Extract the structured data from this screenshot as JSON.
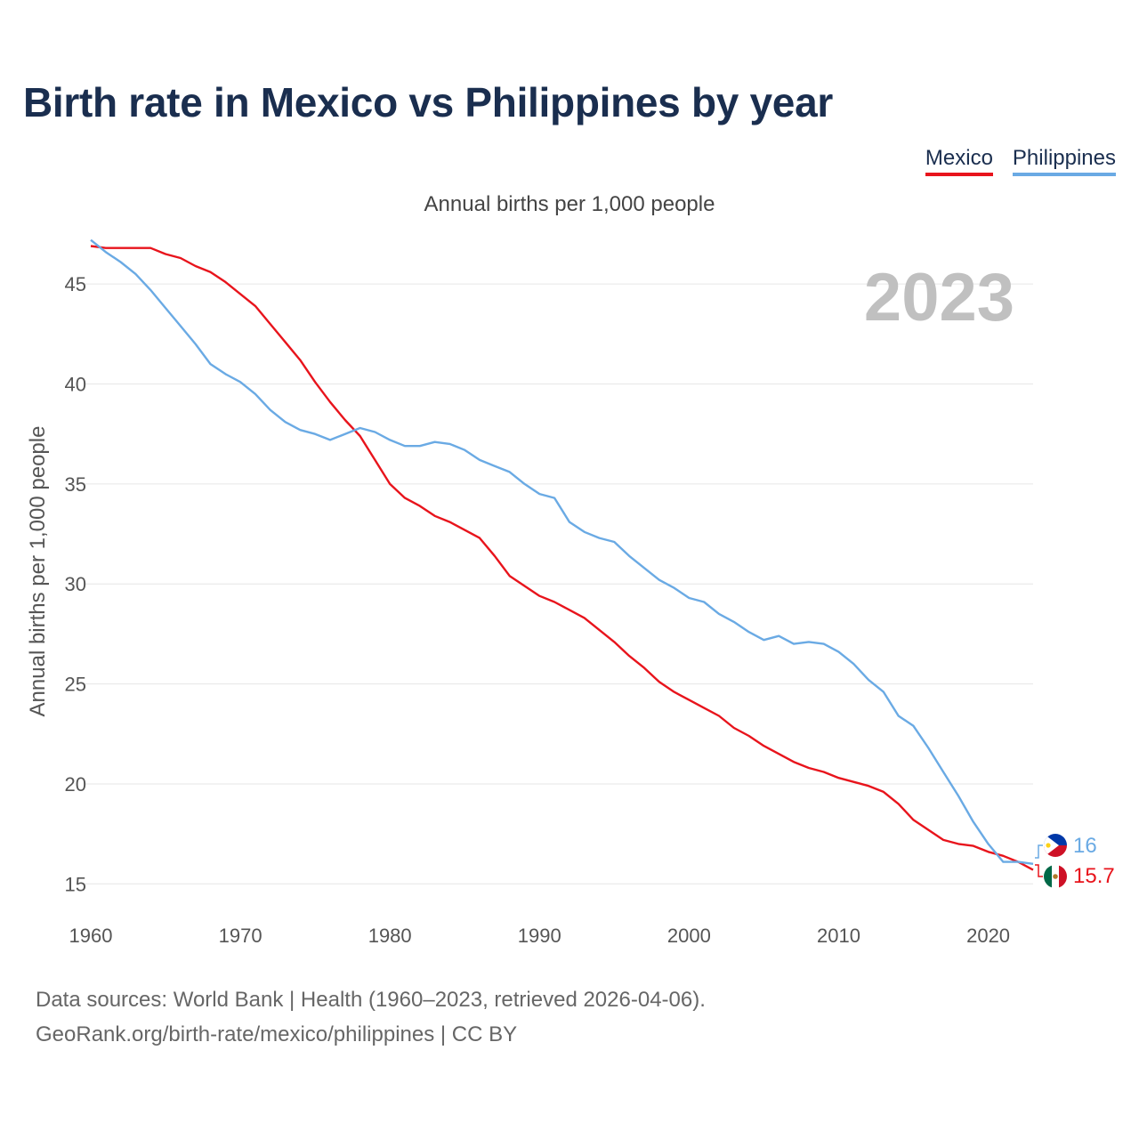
{
  "title": "Birth rate in Mexico vs Philippines by year",
  "subtitle": "Annual births per 1,000 people",
  "year_label": "2023",
  "legend": [
    {
      "name": "Mexico",
      "color": "#e8141c"
    },
    {
      "name": "Philippines",
      "color": "#6aaae4"
    }
  ],
  "end_labels": {
    "mexico": "15.7",
    "philippines": "16"
  },
  "icons": {
    "mexico": "mexico-flag-icon",
    "philippines": "philippines-flag-icon"
  },
  "footer": {
    "line1": "Data sources: World Bank | Health (1960–2023, retrieved 2026-04-06).",
    "line2": "GeoRank.org/birth-rate/mexico/philippines | CC BY"
  },
  "chart_data": {
    "type": "line",
    "title": "Birth rate in Mexico vs Philippines by year",
    "xlabel": "",
    "ylabel": "Annual births per 1,000 people",
    "xlim": [
      1960,
      2023
    ],
    "ylim": [
      13.5,
      47.5
    ],
    "x_ticks": [
      1960,
      1970,
      1980,
      1990,
      2000,
      2010,
      2020
    ],
    "y_ticks": [
      15,
      20,
      25,
      30,
      35,
      40,
      45
    ],
    "grid": true,
    "legend_position": "top-right",
    "x": [
      1960,
      1961,
      1962,
      1963,
      1964,
      1965,
      1966,
      1967,
      1968,
      1969,
      1970,
      1971,
      1972,
      1973,
      1974,
      1975,
      1976,
      1977,
      1978,
      1979,
      1980,
      1981,
      1982,
      1983,
      1984,
      1985,
      1986,
      1987,
      1988,
      1989,
      1990,
      1991,
      1992,
      1993,
      1994,
      1995,
      1996,
      1997,
      1998,
      1999,
      2000,
      2001,
      2002,
      2003,
      2004,
      2005,
      2006,
      2007,
      2008,
      2009,
      2010,
      2011,
      2012,
      2013,
      2014,
      2015,
      2016,
      2017,
      2018,
      2019,
      2020,
      2021,
      2022,
      2023
    ],
    "series": [
      {
        "name": "Mexico",
        "color": "#e8141c",
        "values": [
          46.9,
          46.8,
          46.8,
          46.8,
          46.8,
          46.5,
          46.3,
          45.9,
          45.6,
          45.1,
          44.5,
          43.9,
          43.0,
          42.1,
          41.2,
          40.1,
          39.1,
          38.2,
          37.4,
          36.2,
          35.0,
          34.3,
          33.9,
          33.4,
          33.1,
          32.7,
          32.3,
          31.4,
          30.4,
          29.9,
          29.4,
          29.1,
          28.7,
          28.3,
          27.7,
          27.1,
          26.4,
          25.8,
          25.1,
          24.6,
          24.2,
          23.8,
          23.4,
          22.8,
          22.4,
          21.9,
          21.5,
          21.1,
          20.8,
          20.6,
          20.3,
          20.1,
          19.9,
          19.6,
          19.0,
          18.2,
          17.7,
          17.2,
          17.0,
          16.9,
          16.6,
          16.4,
          16.1,
          15.7
        ]
      },
      {
        "name": "Philippines",
        "color": "#6aaae4",
        "values": [
          47.2,
          46.6,
          46.1,
          45.5,
          44.7,
          43.8,
          42.9,
          42.0,
          41.0,
          40.5,
          40.1,
          39.5,
          38.7,
          38.1,
          37.7,
          37.5,
          37.2,
          37.5,
          37.8,
          37.6,
          37.2,
          36.9,
          36.9,
          37.1,
          37.0,
          36.7,
          36.2,
          35.9,
          35.6,
          35.0,
          34.5,
          34.3,
          33.1,
          32.6,
          32.3,
          32.1,
          31.4,
          30.8,
          30.2,
          29.8,
          29.3,
          29.1,
          28.5,
          28.1,
          27.6,
          27.2,
          27.4,
          27.0,
          27.1,
          27.0,
          26.6,
          26.0,
          25.2,
          24.6,
          23.4,
          22.9,
          21.8,
          20.6,
          19.4,
          18.1,
          17.0,
          16.1,
          16.1,
          16.0
        ]
      }
    ]
  }
}
